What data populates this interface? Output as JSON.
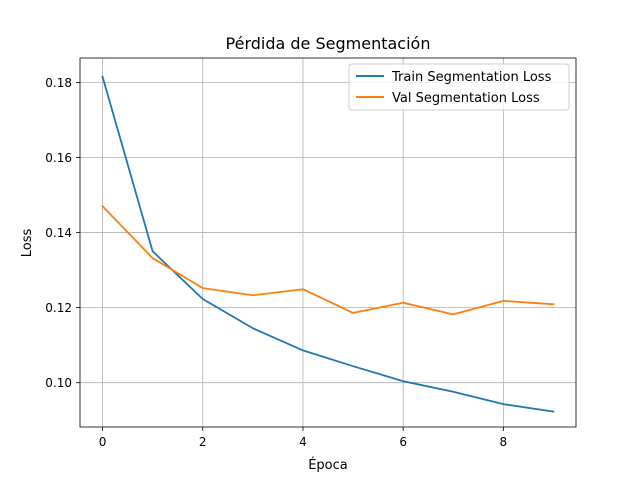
{
  "chart_data": {
    "type": "line",
    "title": "Pérdida de Segmentación",
    "xlabel": "Época",
    "ylabel": "Loss",
    "xlim": [
      -0.45,
      9.45
    ],
    "ylim": [
      0.0882,
      0.1865
    ],
    "grid": true,
    "legend_position": "top-right",
    "x_ticks": [
      0,
      2,
      4,
      6,
      8
    ],
    "y_ticks": [
      0.1,
      0.12,
      0.14,
      0.16,
      0.18
    ],
    "x_tick_labels": [
      "0",
      "2",
      "4",
      "6",
      "8"
    ],
    "y_tick_labels": [
      "0.10",
      "0.12",
      "0.14",
      "0.16",
      "0.18"
    ],
    "x": [
      0,
      1,
      2,
      3,
      4,
      5,
      6,
      7,
      8,
      9
    ],
    "series": [
      {
        "name": "Train Segmentation Loss",
        "color": "#1f77b4",
        "values": [
          0.1815,
          0.135,
          0.1223,
          0.1145,
          0.1086,
          0.1044,
          0.1004,
          0.0976,
          0.0943,
          0.0923
        ]
      },
      {
        "name": "Val Segmentation Loss",
        "color": "#ff7f0e",
        "values": [
          0.147,
          0.1332,
          0.1252,
          0.1233,
          0.1249,
          0.1186,
          0.1213,
          0.1182,
          0.1218,
          0.1209
        ]
      }
    ]
  }
}
